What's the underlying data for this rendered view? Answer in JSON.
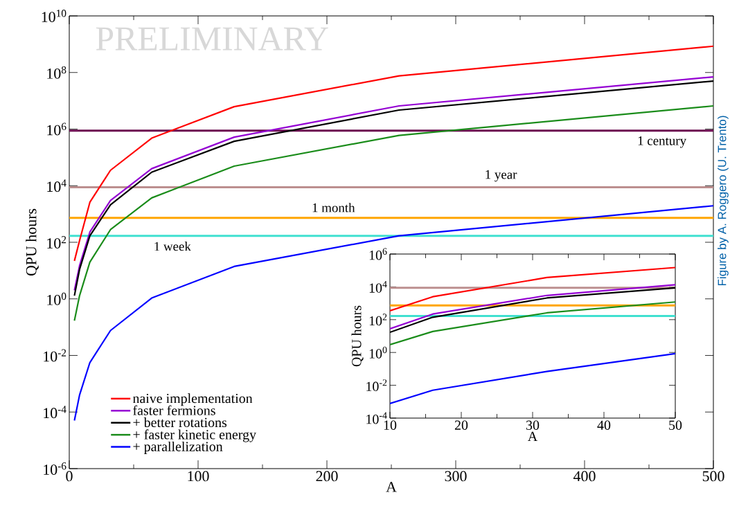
{
  "chart_data": [
    {
      "type": "line",
      "xlabel": "A",
      "ylabel": "QPU hours",
      "log": "y",
      "legend": "bottom left",
      "annotations": [
        "PRELIMINARY",
        "Figure by A. Roggero (U. Trento)"
      ],
      "x": [
        4,
        8,
        16,
        32,
        64,
        128,
        256,
        500
      ],
      "series": [
        {
          "name": "naive implementation",
          "color": "#ff0000",
          "values": [
            22,
            115,
            2600,
            35000,
            480000,
            6200000,
            76000000,
            850000000
          ]
        },
        {
          "name": "faster fermions",
          "color": "#9400d3",
          "values": [
            2.0,
            15,
            230,
            3000,
            40000,
            520000,
            6600000,
            70000000
          ]
        },
        {
          "name": "+ better rotations",
          "color": "#000000",
          "values": [
            1.3,
            11,
            170,
            2100,
            30000,
            370000,
            4700000,
            50000000
          ]
        },
        {
          "name": "+ faster kinetic energy",
          "color": "#1a8c1a",
          "values": [
            0.17,
            1.3,
            20,
            280,
            3700,
            49000,
            600000,
            6600000
          ]
        },
        {
          "name": "+ parallelization",
          "color": "#0000ff",
          "values": [
            5e-05,
            0.0004,
            0.0056,
            0.076,
            1.07,
            14,
            170,
            1950
          ]
        }
      ],
      "ref_lines": [
        {
          "axis": "y",
          "value": 876000,
          "label": "1 century",
          "color": "#6b0b4f"
        },
        {
          "axis": "y",
          "value": 8760,
          "label": "1 year",
          "color": "#bc8f8f"
        },
        {
          "axis": "y",
          "value": 730,
          "label": "1 month",
          "color": "#ffa500"
        },
        {
          "axis": "y",
          "value": 168,
          "label": "1 week",
          "color": "#40e0d0"
        }
      ],
      "xlim": [
        0,
        500
      ],
      "ylim": [
        1e-06,
        10000000000.0
      ],
      "xticks": [
        0,
        100,
        200,
        300,
        400,
        500
      ],
      "yticks": [
        {
          "value": 1e-06,
          "label": "10$^{-6}$"
        },
        {
          "value": 0.0001,
          "label": "10$^{-4}$"
        },
        {
          "value": 0.01,
          "label": "10$^{-2}$"
        },
        {
          "value": 1,
          "label": "10$^{0}$"
        },
        {
          "value": 100.0,
          "label": "10$^{2}$"
        },
        {
          "value": 10000.0,
          "label": "10$^{4}$"
        },
        {
          "value": 1000000.0,
          "label": "10$^{6}$"
        },
        {
          "value": 100000000.0,
          "label": "10$^{8}$"
        },
        {
          "value": 10000000000.0,
          "label": "10$^{10}$"
        }
      ]
    },
    {
      "type": "line",
      "xlabel": "A",
      "ylabel": "QPU hours",
      "log": "y",
      "x": [
        10,
        16,
        32,
        50
      ],
      "series": [
        {
          "color": "#ff0000",
          "values": [
            350,
            2500,
            37000,
            150000
          ]
        },
        {
          "color": "#9400d3",
          "values": [
            28,
            220,
            3000,
            13500
          ]
        },
        {
          "color": "#000000",
          "values": [
            17,
            140,
            2100,
            8700
          ]
        },
        {
          "color": "#1a8c1a",
          "values": [
            3,
            19,
            260,
            1200
          ]
        },
        {
          "color": "#0000ff",
          "values": [
            0.00078,
            0.005,
            0.07,
            0.85
          ]
        }
      ],
      "ref_lines": [
        {
          "axis": "y",
          "value": 8760,
          "color": "#bc8f8f"
        },
        {
          "axis": "y",
          "value": 730,
          "color": "#ffa500"
        },
        {
          "axis": "y",
          "value": 168,
          "color": "#40e0d0"
        }
      ],
      "xlim": [
        10,
        50
      ],
      "ylim": [
        0.0001,
        1000000.0
      ],
      "xticks": [
        10,
        20,
        30,
        40,
        50
      ],
      "yticks": [
        {
          "value": 0.0001,
          "label": "10$^{-4}$"
        },
        {
          "value": 0.01,
          "label": "10$^{-2}$"
        },
        {
          "value": 1,
          "label": "10$^{0}$"
        },
        {
          "value": 100.0,
          "label": "10$^{2}$"
        },
        {
          "value": 10000.0,
          "label": "10$^{4}$"
        },
        {
          "value": 1000000.0,
          "label": "10$^{6}$"
        }
      ]
    }
  ]
}
